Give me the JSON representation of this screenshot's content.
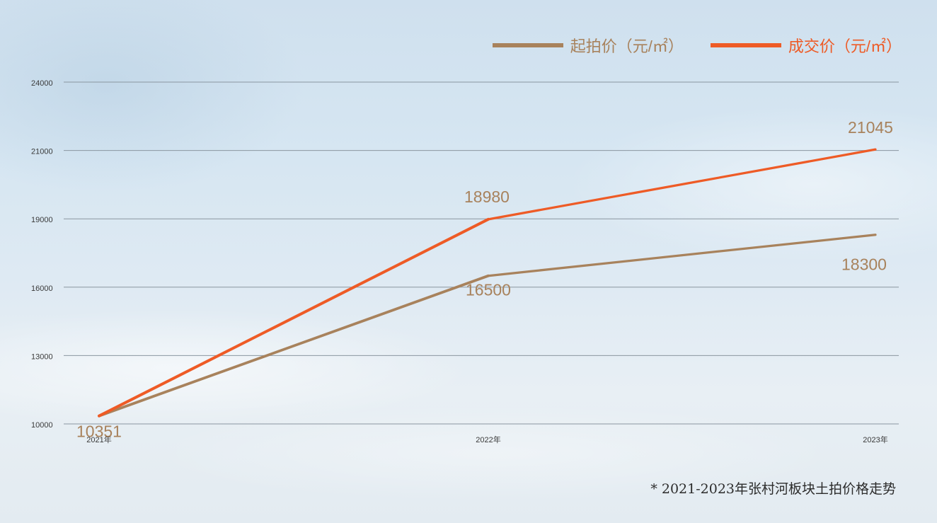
{
  "chart_data": {
    "type": "line",
    "categories": [
      "2021年",
      "2022年",
      "2023年"
    ],
    "y_ticks": [
      "10000",
      "13000",
      "16000",
      "19000",
      "21000",
      "24000"
    ],
    "y_tick_values": [
      10000,
      13000,
      16000,
      19000,
      21000,
      24000
    ],
    "grid": true,
    "legend_position": "top-right",
    "series": [
      {
        "name": "起拍价（元/㎡）",
        "values": [
          10351,
          16500,
          18300
        ],
        "labels": [
          "10351",
          "16500",
          "18300"
        ],
        "color": "#a8825c"
      },
      {
        "name": "成交价（元/㎡）",
        "values": [
          10351,
          18980,
          21045
        ],
        "labels": [
          "",
          "18980",
          "21045"
        ],
        "color": "#ee5b26"
      }
    ],
    "note": "* 2021-2023年张村河板块土拍价格走势"
  },
  "colors": {
    "grid": "#8a96a0",
    "tick_text": "#3a3a3a",
    "data_label": "#a8825c"
  }
}
